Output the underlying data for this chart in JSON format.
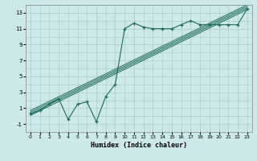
{
  "xlabel": "Humidex (Indice chaleur)",
  "xlim": [
    -0.5,
    23.5
  ],
  "ylim": [
    -2,
    14
  ],
  "xticks": [
    0,
    1,
    2,
    3,
    4,
    5,
    6,
    7,
    8,
    9,
    10,
    11,
    12,
    13,
    14,
    15,
    16,
    17,
    18,
    19,
    20,
    21,
    22,
    23
  ],
  "yticks": [
    -1,
    1,
    3,
    5,
    7,
    9,
    11,
    13
  ],
  "bg_color": "#cce8e8",
  "line_color": "#1e6b5e",
  "grid_color": "#aacccc",
  "zigzag_x": [
    0,
    1,
    2,
    3,
    4,
    5,
    6,
    7,
    8,
    9,
    10,
    11,
    12,
    13,
    14,
    15,
    16,
    17,
    18,
    19,
    20,
    21,
    22,
    23
  ],
  "zigzag_y": [
    0.3,
    0.7,
    1.5,
    2.2,
    -0.4,
    1.5,
    1.8,
    -0.7,
    2.5,
    4.0,
    11.0,
    11.7,
    11.2,
    11.0,
    11.0,
    11.0,
    11.5,
    12.0,
    11.5,
    11.5,
    11.5,
    11.5,
    11.5,
    13.5
  ],
  "diag_lines": [
    {
      "x0": 0,
      "y0": 0.1,
      "x1": 23,
      "y1": 13.4
    },
    {
      "x0": 0,
      "y0": 0.3,
      "x1": 23,
      "y1": 13.6
    },
    {
      "x0": 0,
      "y0": 0.5,
      "x1": 23,
      "y1": 13.8
    },
    {
      "x0": 0,
      "y0": 0.7,
      "x1": 23,
      "y1": 14.0
    }
  ]
}
